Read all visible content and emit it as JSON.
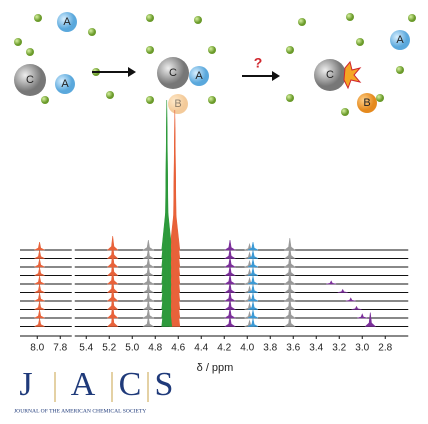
{
  "chart_data": {
    "type": "stacked-spectra",
    "xlabel": "δ / ppm",
    "xlim": [
      8.15,
      2.6
    ],
    "xbreak": [
      7.7,
      5.5
    ],
    "xticks": [
      {
        "value": 8.0,
        "label": "8.0"
      },
      7.8,
      5.4,
      5.2,
      {
        "value": 5.0,
        "label": "5.0"
      },
      4.8,
      4.6,
      4.4,
      4.2,
      {
        "value": 4.0,
        "label": "4.0"
      },
      3.8,
      3.6,
      3.4,
      3.2,
      {
        "value": 3.0,
        "label": "3.0"
      },
      2.8
    ],
    "traces": 10,
    "series": [
      {
        "color": "#e8623a",
        "x": [
          7.98,
          5.17,
          4.63
        ],
        "values": [
          8,
          14,
          140
        ]
      },
      {
        "color": "#2e9a3c",
        "x": [
          4.7
        ],
        "values": [
          150
        ]
      },
      {
        "color": "#9a9a9a",
        "x": [
          4.86,
          3.98,
          3.63
        ],
        "values": [
          10,
          6,
          12
        ]
      },
      {
        "color": "#7b2f9a",
        "x": [
          4.15
        ],
        "values": [
          10
        ]
      },
      {
        "color": "#3b9ad6",
        "x": [
          3.95
        ],
        "values": [
          8
        ]
      }
    ],
    "moving": {
      "color": "#7b2f9a",
      "x": [
        null,
        null,
        null,
        null,
        3.27,
        3.17,
        3.1,
        3.05,
        3.0,
        2.93
      ],
      "values": [
        null,
        null,
        null,
        null,
        3,
        3,
        3,
        3,
        4,
        14
      ]
    }
  },
  "scheme": {
    "labels": [
      "A",
      "C",
      "A",
      "C",
      "A",
      "B",
      "?",
      "A",
      "C",
      "B"
    ]
  },
  "logo": {
    "letters": [
      "J",
      "A",
      "C",
      "S"
    ],
    "subtitle": "JOURNAL OF THE AMERICAN CHEMICAL SOCIETY"
  }
}
